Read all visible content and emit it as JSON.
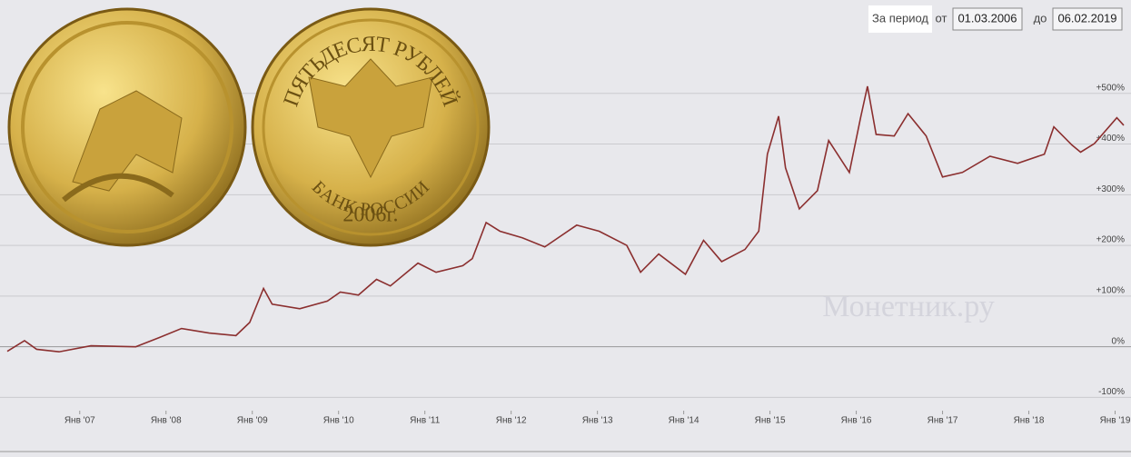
{
  "chart_data": {
    "type": "line",
    "period_label": "За период",
    "from_label": "от",
    "from": "01.03.2006",
    "to_label": "до",
    "to": "06.02.2019",
    "coin_texts": [
      "ПЯТЬДЕСЯТ РУБЛЕЙ",
      "БАНК РОССИИ",
      "2006г."
    ],
    "watermark": "Монетник.ру",
    "x": [
      2006.16,
      2006.36,
      2006.5,
      2006.76,
      2007.13,
      2007.65,
      2007.92,
      2008.18,
      2008.5,
      2008.81,
      2008.97,
      2009.13,
      2009.23,
      2009.55,
      2009.87,
      2010.02,
      2010.23,
      2010.44,
      2010.6,
      2010.92,
      2011.13,
      2011.44,
      2011.55,
      2011.71,
      2011.87,
      2012.13,
      2012.39,
      2012.76,
      2013.02,
      2013.34,
      2013.5,
      2013.71,
      2014.02,
      2014.23,
      2014.44,
      2014.71,
      2014.87,
      2014.97,
      2015.1,
      2015.18,
      2015.34,
      2015.55,
      2015.68,
      2015.92,
      2016.05,
      2016.13,
      2016.23,
      2016.44,
      2016.6,
      2016.81,
      2017.0,
      2017.23,
      2017.55,
      2017.87,
      2018.18,
      2018.29,
      2018.5,
      2018.6,
      2018.76,
      2019.02,
      2019.1
    ],
    "series": [
      {
        "color": "#8b2f2f",
        "values": [
          -9,
          12,
          -5,
          -10,
          2,
          0,
          18,
          36,
          27,
          22,
          48,
          115,
          84,
          75,
          90,
          108,
          102,
          133,
          120,
          165,
          147,
          160,
          174,
          245,
          228,
          215,
          197,
          240,
          228,
          200,
          147,
          183,
          143,
          210,
          168,
          192,
          228,
          380,
          455,
          353,
          272,
          308,
          407,
          344,
          452,
          514,
          419,
          416,
          460,
          416,
          335,
          344,
          376,
          362,
          380,
          434,
          398,
          384,
          401,
          452,
          437
        ]
      }
    ],
    "xlim": [
      2006.16,
      2019.1
    ],
    "ylim": [
      -110,
      600
    ],
    "xticks": [
      {
        "value": 2007,
        "label": "Янв '07"
      },
      {
        "value": 2008,
        "label": "Янв '08"
      },
      {
        "value": 2009,
        "label": "Янв '09"
      },
      {
        "value": 2010,
        "label": "Янв '10"
      },
      {
        "value": 2011,
        "label": "Янв '11"
      },
      {
        "value": 2012,
        "label": "Янв '12"
      },
      {
        "value": 2013,
        "label": "Янв '13"
      },
      {
        "value": 2014,
        "label": "Янв '14"
      },
      {
        "value": 2015,
        "label": "Янв '15"
      },
      {
        "value": 2016,
        "label": "Янв '16"
      },
      {
        "value": 2017,
        "label": "Янв '17"
      },
      {
        "value": 2018,
        "label": "Янв '18"
      },
      {
        "value": 2019,
        "label": "Янв '19"
      }
    ],
    "yticks": [
      {
        "value": 500,
        "label": "+500%"
      },
      {
        "value": 400,
        "label": "+400%"
      },
      {
        "value": 300,
        "label": "+300%"
      },
      {
        "value": 200,
        "label": "+200%"
      },
      {
        "value": 100,
        "label": "+100%"
      },
      {
        "value": 0,
        "label": "0%"
      },
      {
        "value": -100,
        "label": "-100%"
      }
    ],
    "grid": true
  }
}
